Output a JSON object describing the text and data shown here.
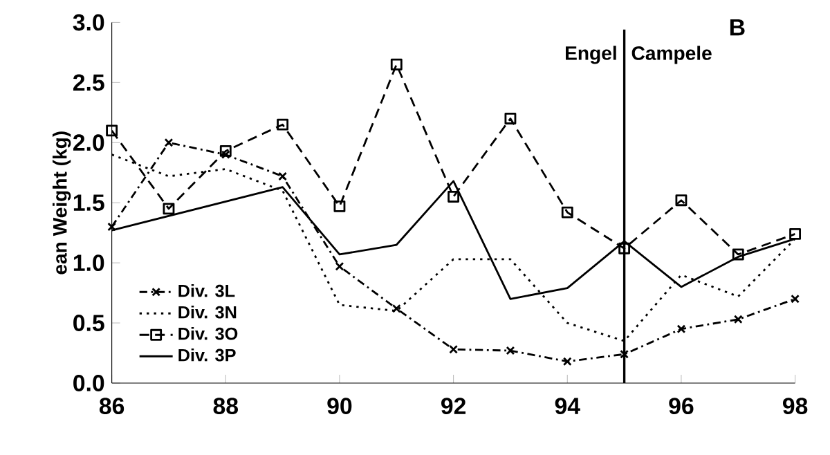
{
  "chart_data": {
    "type": "line",
    "ylabel": "ean Weight (kg)",
    "xlim": [
      86,
      98
    ],
    "xticks": [
      86,
      88,
      90,
      92,
      94,
      96,
      98
    ],
    "ylim": [
      0,
      3
    ],
    "yticks": [
      {
        "value": 0,
        "label": "0.0"
      },
      {
        "value": 0.5,
        "label": "0.5"
      },
      {
        "value": 1,
        "label": "1.0"
      },
      {
        "value": 1.5,
        "label": "1.5"
      },
      {
        "value": 2,
        "label": "2.0"
      },
      {
        "value": 2.5,
        "label": "2.5"
      },
      {
        "value": 3,
        "label": "3.0"
      }
    ],
    "grid": false,
    "legend": "bottom left",
    "series": [
      {
        "name": "Div. 3L",
        "color": "#000000",
        "marker": "cross",
        "line_style": "dashdot",
        "x": [
          86,
          87,
          88,
          89,
          90,
          91,
          92,
          93,
          94,
          95,
          96,
          97,
          98
        ],
        "values": [
          1.3,
          2.0,
          1.9,
          1.72,
          0.97,
          0.62,
          0.28,
          0.27,
          0.18,
          0.24,
          0.45,
          0.53,
          0.7
        ]
      },
      {
        "name": "Div. 3N",
        "color": "#000000",
        "marker": "none",
        "line_style": "dotted",
        "x": [
          86,
          87,
          88,
          89,
          90,
          91,
          92,
          93,
          94,
          95,
          96,
          97,
          98
        ],
        "values": [
          1.9,
          1.72,
          1.78,
          1.6,
          0.65,
          0.6,
          1.03,
          1.03,
          0.5,
          0.35,
          0.9,
          0.72,
          1.2
        ]
      },
      {
        "name": "Div. 3O",
        "color": "#000000",
        "marker": "square",
        "line_style": "dashed",
        "x": [
          86,
          87,
          88,
          89,
          90,
          91,
          92,
          93,
          94,
          95,
          96,
          97,
          98
        ],
        "values": [
          2.1,
          1.45,
          1.93,
          2.15,
          1.47,
          2.65,
          1.55,
          2.2,
          1.42,
          1.12,
          1.52,
          1.07,
          1.24
        ]
      },
      {
        "name": "Div. 3P",
        "color": "#000000",
        "marker": "none",
        "line_style": "solid",
        "x": [
          86,
          89,
          90,
          91,
          92,
          93,
          94,
          95,
          96,
          97,
          98
        ],
        "values": [
          1.27,
          1.63,
          1.07,
          1.15,
          1.68,
          0.7,
          0.79,
          1.18,
          0.8,
          1.05,
          1.2
        ]
      }
    ],
    "ref_lines": [
      {
        "axis": "x",
        "value": 95,
        "color": "#000000"
      }
    ],
    "annotations": [
      "Engel",
      "Campele",
      "B"
    ]
  }
}
